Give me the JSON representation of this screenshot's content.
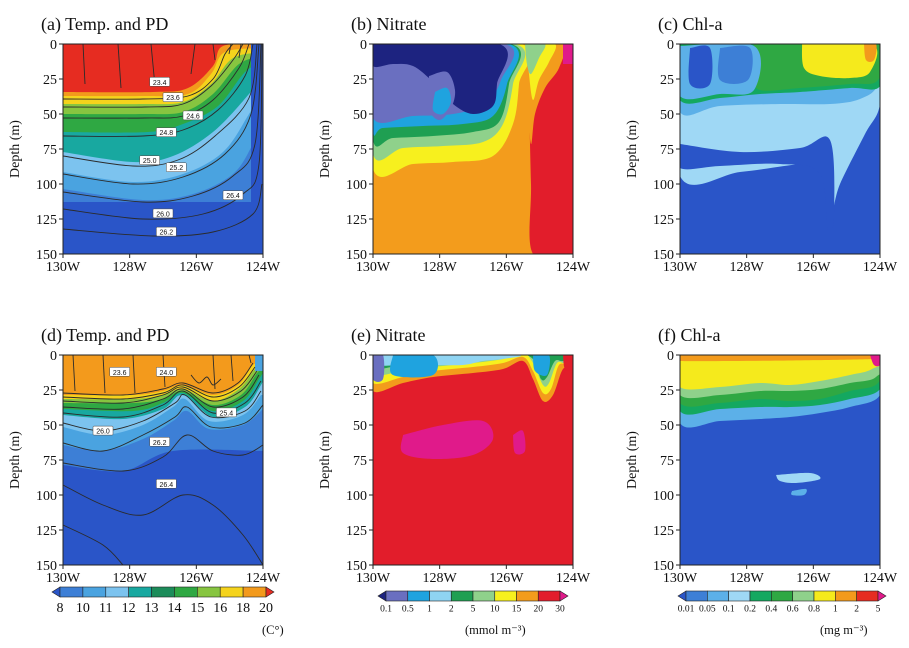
{
  "chart_data": [
    {
      "type": "heatmap",
      "title": "(a) Temp. and PD",
      "ylabel": "Depth (m)",
      "x_ticks": [
        "130W",
        "128W",
        "126W",
        "124W"
      ],
      "y_ticks": [
        "0",
        "25",
        "50",
        "75",
        "100",
        "125",
        "150"
      ],
      "xlim": [
        -130,
        -124
      ],
      "ylim": [
        150,
        0
      ],
      "colorbar": "temperature",
      "contour_labels": [
        {
          "text": "23.4",
          "lon": -127.1,
          "depth": 27
        },
        {
          "text": "23.6",
          "lon": -126.7,
          "depth": 38
        },
        {
          "text": "24.6",
          "lon": -126.1,
          "depth": 51
        },
        {
          "text": "24.8",
          "lon": -126.9,
          "depth": 63
        },
        {
          "text": "25.0",
          "lon": -127.4,
          "depth": 83
        },
        {
          "text": "25.2",
          "lon": -126.6,
          "depth": 88
        },
        {
          "text": "26.4",
          "lon": -124.9,
          "depth": 108
        },
        {
          "text": "26.0",
          "lon": -127.0,
          "depth": 121
        },
        {
          "text": "26.2",
          "lon": -126.9,
          "depth": 134
        }
      ]
    },
    {
      "type": "heatmap",
      "title": "(b) Nitrate",
      "ylabel": "Depth (m)",
      "x_ticks": [
        "130W",
        "128W",
        "126W",
        "124W"
      ],
      "y_ticks": [
        "0",
        "25",
        "50",
        "75",
        "100",
        "125",
        "150"
      ],
      "xlim": [
        -130,
        -124
      ],
      "ylim": [
        150,
        0
      ],
      "colorbar": "nitrate"
    },
    {
      "type": "heatmap",
      "title": "(c) Chl-a",
      "ylabel": "Depth (m)",
      "x_ticks": [
        "130W",
        "128W",
        "126W",
        "124W"
      ],
      "y_ticks": [
        "0",
        "25",
        "50",
        "75",
        "100",
        "125",
        "150"
      ],
      "xlim": [
        -130,
        -124
      ],
      "ylim": [
        150,
        0
      ],
      "colorbar": "chla"
    },
    {
      "type": "heatmap",
      "title": "(d) Temp. and PD",
      "ylabel": "Depth (m)",
      "x_ticks": [
        "130W",
        "128W",
        "126W",
        "124W"
      ],
      "y_ticks": [
        "0",
        "25",
        "50",
        "75",
        "100",
        "125",
        "150"
      ],
      "xlim": [
        -130,
        -124
      ],
      "ylim": [
        150,
        0
      ],
      "colorbar": "temperature",
      "contour_labels": [
        {
          "text": "23.6",
          "lon": -128.3,
          "depth": 12
        },
        {
          "text": "24.0",
          "lon": -126.9,
          "depth": 12
        },
        {
          "text": "25.4",
          "lon": -125.1,
          "depth": 41
        },
        {
          "text": "26.0",
          "lon": -128.8,
          "depth": 54
        },
        {
          "text": "26.2",
          "lon": -127.1,
          "depth": 62
        },
        {
          "text": "26.4",
          "lon": -126.9,
          "depth": 92
        }
      ]
    },
    {
      "type": "heatmap",
      "title": "(e) Nitrate",
      "ylabel": "Depth (m)",
      "x_ticks": [
        "130W",
        "128W",
        "126W",
        "124W"
      ],
      "y_ticks": [
        "0",
        "25",
        "50",
        "75",
        "100",
        "125",
        "150"
      ],
      "xlim": [
        -130,
        -124
      ],
      "ylim": [
        150,
        0
      ],
      "colorbar": "nitrate"
    },
    {
      "type": "heatmap",
      "title": "(f) Chl-a",
      "ylabel": "Depth (m)",
      "x_ticks": [
        "130W",
        "128W",
        "126W",
        "124W"
      ],
      "y_ticks": [
        "0",
        "25",
        "50",
        "75",
        "100",
        "125",
        "150"
      ],
      "xlim": [
        -130,
        -124
      ],
      "ylim": [
        150,
        0
      ],
      "colorbar": "chla"
    }
  ],
  "colorbars": {
    "temperature": {
      "labels": [
        "8",
        "10",
        "11",
        "12",
        "13",
        "14",
        "15",
        "16",
        "18",
        "20"
      ],
      "colors": [
        "#2a55c8",
        "#3d7fd6",
        "#4aa3e0",
        "#7cc3ef",
        "#18a8a0",
        "#1c8c5a",
        "#2fa843",
        "#87c540",
        "#f5d31c",
        "#f39a1c",
        "#e62c21"
      ],
      "unit": "(C°)"
    },
    "nitrate": {
      "labels": [
        "0.1",
        "0.5",
        "1",
        "2",
        "5",
        "10",
        "15",
        "20",
        "30"
      ],
      "colors": [
        "#1d2380",
        "#6a6fc0",
        "#1fa3df",
        "#8fd4f2",
        "#1f9f52",
        "#8fd18b",
        "#f7f01e",
        "#f39c1c",
        "#e21d2b",
        "#e01a8a"
      ],
      "unit": "(mmol m⁻³)"
    },
    "chla": {
      "labels": [
        "0.01",
        "0.05",
        "0.1",
        "0.2",
        "0.4",
        "0.6",
        "0.8",
        "1",
        "2",
        "5"
      ],
      "colors": [
        "#2a55c8",
        "#3d7fd6",
        "#5cb0e8",
        "#9fd8f5",
        "#14a860",
        "#2fa843",
        "#8fd18b",
        "#f5ea1c",
        "#f39a1c",
        "#e62c21",
        "#e01a8a"
      ],
      "unit": "(mg m⁻³)"
    }
  }
}
